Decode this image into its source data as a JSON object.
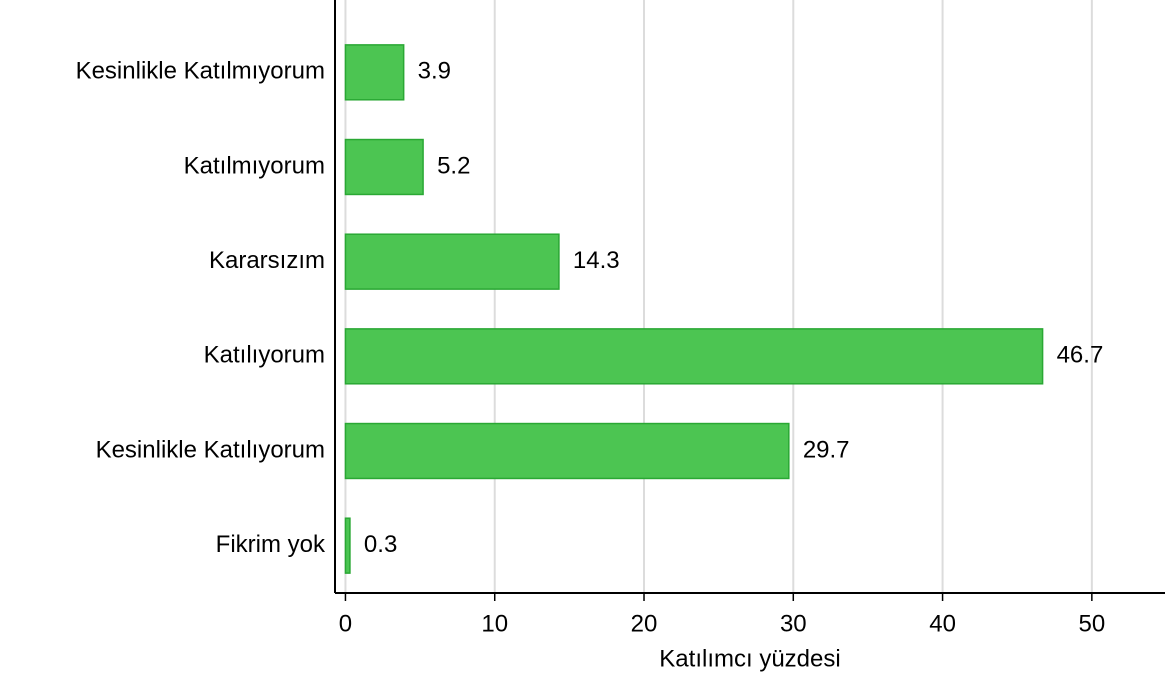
{
  "chart_data": {
    "type": "bar",
    "orientation": "horizontal",
    "x_label": "Katılımcı yüzdesi",
    "categories": [
      "Kesinlikle Katılmıyorum",
      "Katılmıyorum",
      "Kararsızım",
      "Katılıyorum",
      "Kesinlikle Katılıyorum",
      "Fikrim yok"
    ],
    "values": [
      3.9,
      5.2,
      14.3,
      46.7,
      29.7,
      0.3
    ],
    "color": "#4cc552",
    "xlim": [
      -0.7,
      54.9
    ],
    "xticks": [
      0,
      10,
      20,
      30,
      40,
      50
    ],
    "grid": true
  }
}
